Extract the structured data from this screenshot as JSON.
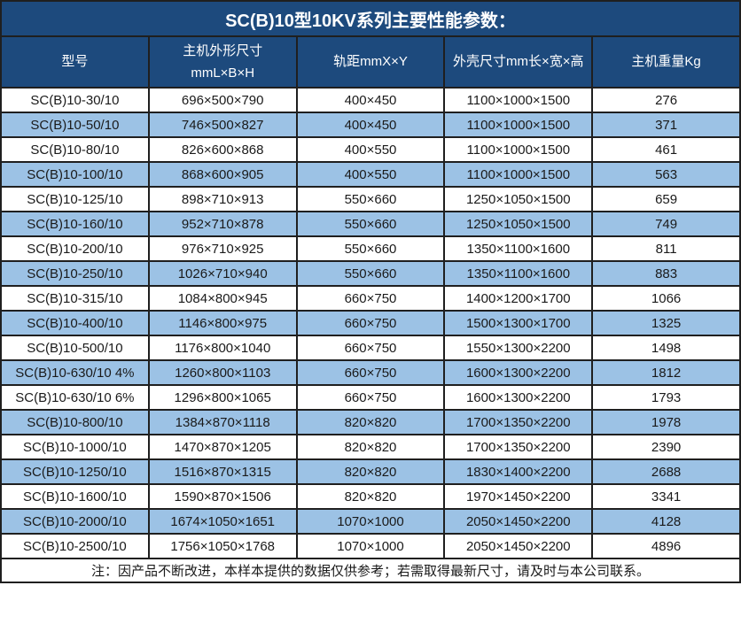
{
  "title": "SC(B)10型10KV系列主要性能参数：",
  "note": "注：因产品不断改进，本样本提供的数据仅供参考；若需取得最新尺寸，请及时与本公司联系。",
  "colors": {
    "header_bg": "#1d4a7d",
    "header_text": "#ffffff",
    "row_bg": "#ffffff",
    "row_alt_bg": "#9cc2e5",
    "border": "#1f1f1f",
    "cell_text": "#1a1a1a"
  },
  "chart_data": {
    "type": "table",
    "title": "SC(B)10型10KV系列主要性能参数：",
    "headers": [
      {
        "lines": [
          "型号"
        ]
      },
      {
        "lines": [
          "主机外形尺寸",
          "mmL×B×H"
        ]
      },
      {
        "lines": [
          "轨距mmX×Y"
        ]
      },
      {
        "lines": [
          "外壳尺寸mm长×宽×高"
        ]
      },
      {
        "lines": [
          "主机重量Kg"
        ]
      }
    ],
    "rows": [
      [
        "SC(B)10-30/10",
        "696×500×790",
        "400×450",
        "1100×1000×1500",
        "276"
      ],
      [
        "SC(B)10-50/10",
        "746×500×827",
        "400×450",
        "1100×1000×1500",
        "371"
      ],
      [
        "SC(B)10-80/10",
        "826×600×868",
        "400×550",
        "1100×1000×1500",
        "461"
      ],
      [
        "SC(B)10-100/10",
        "868×600×905",
        "400×550",
        "1100×1000×1500",
        "563"
      ],
      [
        "SC(B)10-125/10",
        "898×710×913",
        "550×660",
        "1250×1050×1500",
        "659"
      ],
      [
        "SC(B)10-160/10",
        "952×710×878",
        "550×660",
        "1250×1050×1500",
        "749"
      ],
      [
        "SC(B)10-200/10",
        "976×710×925",
        "550×660",
        "1350×1100×1600",
        "811"
      ],
      [
        "SC(B)10-250/10",
        "1026×710×940",
        "550×660",
        "1350×1100×1600",
        "883"
      ],
      [
        "SC(B)10-315/10",
        "1084×800×945",
        "660×750",
        "1400×1200×1700",
        "1066"
      ],
      [
        "SC(B)10-400/10",
        "1146×800×975",
        "660×750",
        "1500×1300×1700",
        "1325"
      ],
      [
        "SC(B)10-500/10",
        "1176×800×1040",
        "660×750",
        "1550×1300×2200",
        "1498"
      ],
      [
        "SC(B)10-630/10 4%",
        "1260×800×1103",
        "660×750",
        "1600×1300×2200",
        "1812"
      ],
      [
        "SC(B)10-630/10 6%",
        "1296×800×1065",
        "660×750",
        "1600×1300×2200",
        "1793"
      ],
      [
        "SC(B)10-800/10",
        "1384×870×1118",
        "820×820",
        "1700×1350×2200",
        "1978"
      ],
      [
        "SC(B)10-1000/10",
        "1470×870×1205",
        "820×820",
        "1700×1350×2200",
        "2390"
      ],
      [
        "SC(B)10-1250/10",
        "1516×870×1315",
        "820×820",
        "1830×1400×2200",
        "2688"
      ],
      [
        "SC(B)10-1600/10",
        "1590×870×1506",
        "820×820",
        "1970×1450×2200",
        "3341"
      ],
      [
        "SC(B)10-2000/10",
        "1674×1050×1651",
        "1070×1000",
        "2050×1450×2200",
        "4128"
      ],
      [
        "SC(B)10-2500/10",
        "1756×1050×1768",
        "1070×1000",
        "2050×1450×2200",
        "4896"
      ]
    ]
  }
}
